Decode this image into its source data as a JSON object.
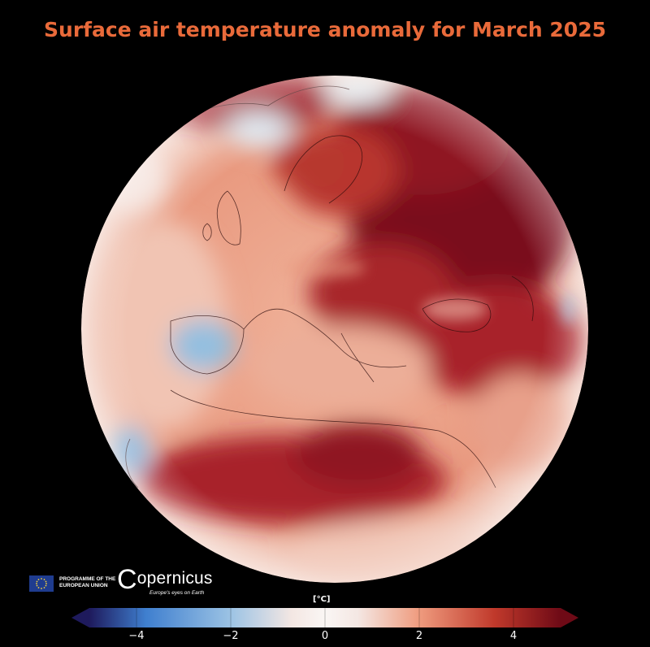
{
  "title": "Surface air temperature anomaly for March 2025",
  "colors": {
    "title": "#e96a3a",
    "background": "#000000",
    "warm_dark": "#6e0a16",
    "warm_mid": "#c0392b",
    "warm_light": "#ef9b7e",
    "neutral": "#f4e7e3",
    "cool_light": "#9cc3e4",
    "cool_mid": "#3f7fcf",
    "cool_dark": "#1e1a5c"
  },
  "branding": {
    "eu_line1": "PROGRAMME OF THE",
    "eu_line2": "EUROPEAN UNION",
    "logo_text": "opernicus",
    "logo_initial": "C",
    "tagline": "Europe's eyes on Earth",
    "eu_flag_icon": "eu-flag-icon",
    "copernicus_icon": "copernicus-logo-icon"
  },
  "colorbar": {
    "unit": "[°C]",
    "min": -5,
    "max": 5,
    "ticks": [
      {
        "value": -4,
        "label": "−4"
      },
      {
        "value": -2,
        "label": "−2"
      },
      {
        "value": 0,
        "label": "0"
      },
      {
        "value": 2,
        "label": "2"
      },
      {
        "value": 4,
        "label": "4"
      }
    ],
    "extend": "both"
  }
}
